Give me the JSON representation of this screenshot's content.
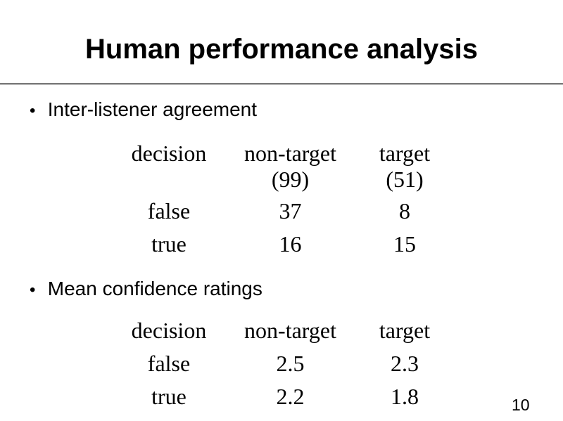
{
  "slide": {
    "title": "Human performance analysis",
    "page_number": "10",
    "bullet_marker": "•",
    "sections": [
      {
        "heading": "Inter-listener agreement"
      },
      {
        "heading": "Mean confidence ratings"
      }
    ],
    "tables": [
      {
        "header": [
          "decision",
          "non-target",
          "target"
        ],
        "header_sub": [
          "",
          "(99)",
          "(51)"
        ],
        "rows": [
          [
            "false",
            "37",
            "8"
          ],
          [
            "true",
            "16",
            "15"
          ]
        ]
      },
      {
        "header": [
          "decision",
          "non-target",
          "target"
        ],
        "rows": [
          [
            "false",
            "2.5",
            "2.3"
          ],
          [
            "true",
            "2.2",
            "1.8"
          ]
        ]
      }
    ]
  },
  "colors": {
    "background": "#ffffff",
    "text": "#000000",
    "divider": "#7a7a7a"
  },
  "chart_data": [
    {
      "type": "table",
      "title": "Inter-listener agreement",
      "columns": [
        "decision",
        "non-target (99)",
        "target (51)"
      ],
      "rows": [
        [
          "false",
          37,
          8
        ],
        [
          "true",
          16,
          15
        ]
      ]
    },
    {
      "type": "table",
      "title": "Mean confidence ratings",
      "columns": [
        "decision",
        "non-target",
        "target"
      ],
      "rows": [
        [
          "false",
          2.5,
          2.3
        ],
        [
          "true",
          2.2,
          1.8
        ]
      ]
    }
  ]
}
